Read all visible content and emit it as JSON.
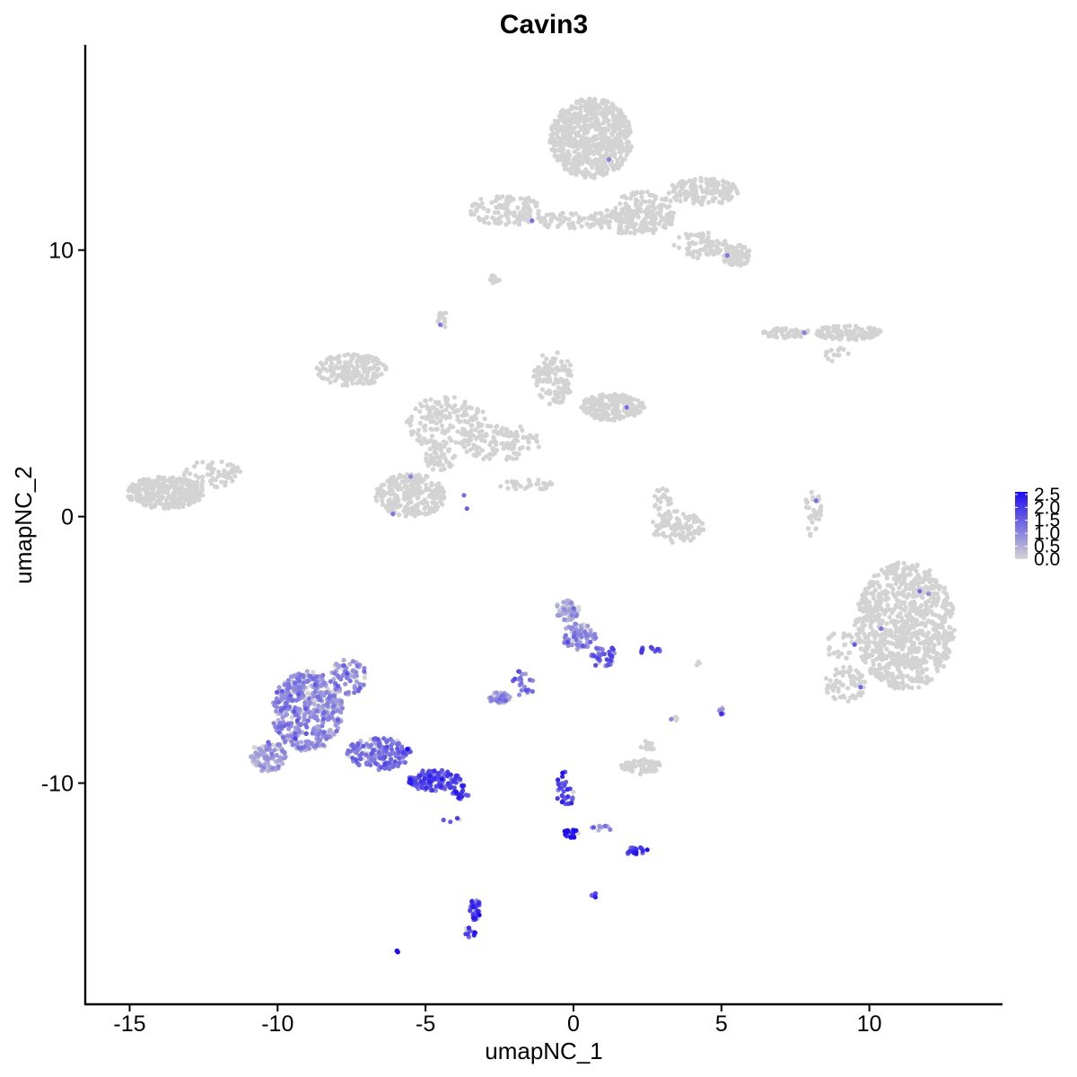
{
  "chart_data": {
    "type": "scatter",
    "title": "Cavin3",
    "xlabel": "umapNC_1",
    "ylabel": "umapNC_2",
    "xlim": [
      -16.5,
      14.5
    ],
    "ylim": [
      -18.3,
      17.7
    ],
    "x_ticks": [
      {
        "value": -15,
        "label": "-15"
      },
      {
        "value": -10,
        "label": "-10"
      },
      {
        "value": -5,
        "label": "-5"
      },
      {
        "value": 0,
        "label": "0"
      },
      {
        "value": 5,
        "label": "5"
      },
      {
        "value": 10,
        "label": "10"
      }
    ],
    "y_ticks": [
      {
        "value": -10,
        "label": "-10"
      },
      {
        "value": 0,
        "label": "0"
      },
      {
        "value": 10,
        "label": "10"
      }
    ],
    "grid": false,
    "legend_position": "right",
    "colorscale": {
      "low": "#d3d3d3",
      "high": "#1d0cf0",
      "min": 0,
      "max": 2.6
    },
    "colorbar_ticks": [
      {
        "value": 0.0,
        "label": "0.0"
      },
      {
        "value": 0.5,
        "label": "0.5"
      },
      {
        "value": 1.0,
        "label": "1.0"
      },
      {
        "value": 1.5,
        "label": "1.5"
      },
      {
        "value": 2.0,
        "label": "2.0"
      },
      {
        "value": 2.5,
        "label": "2.5"
      }
    ],
    "clusters": [
      {
        "x": 11.2,
        "y": -4.1,
        "rx": 1.7,
        "ry": 2.4,
        "n": 900,
        "expr": 0.0
      },
      {
        "x": 9.2,
        "y": -6.3,
        "rx": 0.7,
        "ry": 0.7,
        "n": 70,
        "expr": 0.0
      },
      {
        "x": 9.0,
        "y": -4.8,
        "rx": 0.5,
        "ry": 0.6,
        "n": 25,
        "expr": 0.0
      },
      {
        "x": 0.6,
        "y": 14.2,
        "rx": 1.4,
        "ry": 1.5,
        "n": 650,
        "expr": 0.0
      },
      {
        "x": 2.3,
        "y": 11.4,
        "rx": 1.2,
        "ry": 0.8,
        "n": 160,
        "expr": 0.0
      },
      {
        "x": 4.4,
        "y": 12.2,
        "rx": 1.2,
        "ry": 0.5,
        "n": 160,
        "expr": 0.0
      },
      {
        "x": 5.5,
        "y": 9.8,
        "rx": 0.5,
        "ry": 0.4,
        "n": 80,
        "expr": 0.0
      },
      {
        "x": 4.3,
        "y": 10.2,
        "rx": 0.9,
        "ry": 0.5,
        "n": 80,
        "expr": 0.0
      },
      {
        "x": 1.8,
        "y": 11.1,
        "rx": 1.3,
        "ry": 0.5,
        "n": 90,
        "expr": 0.0
      },
      {
        "x": -0.1,
        "y": 11.1,
        "rx": 1.3,
        "ry": 0.3,
        "n": 60,
        "expr": 0.0
      },
      {
        "x": -2.3,
        "y": 11.5,
        "rx": 1.2,
        "ry": 0.6,
        "n": 120,
        "expr": 0.0
      },
      {
        "x": -2.7,
        "y": 8.9,
        "rx": 0.2,
        "ry": 0.2,
        "n": 15,
        "expr": 0.0
      },
      {
        "x": -4.4,
        "y": 7.4,
        "rx": 0.2,
        "ry": 0.3,
        "n": 14,
        "expr": 0.0
      },
      {
        "x": 9.3,
        "y": 6.9,
        "rx": 1.1,
        "ry": 0.3,
        "n": 110,
        "expr": 0.0
      },
      {
        "x": 7.2,
        "y": 6.9,
        "rx": 0.8,
        "ry": 0.2,
        "n": 50,
        "expr": 0.0
      },
      {
        "x": 8.9,
        "y": 6.1,
        "rx": 0.4,
        "ry": 0.3,
        "n": 15,
        "expr": 0.0
      },
      {
        "x": -13.8,
        "y": 0.9,
        "rx": 1.3,
        "ry": 0.6,
        "n": 330,
        "expr": 0.0
      },
      {
        "x": -12.2,
        "y": 1.6,
        "rx": 1.0,
        "ry": 0.5,
        "n": 60,
        "expr": 0.0
      },
      {
        "x": -7.5,
        "y": 5.5,
        "rx": 1.2,
        "ry": 0.6,
        "n": 170,
        "expr": 0.0
      },
      {
        "x": -4.3,
        "y": 3.5,
        "rx": 1.4,
        "ry": 1.0,
        "n": 170,
        "expr": 0.0
      },
      {
        "x": -2.5,
        "y": 2.8,
        "rx": 1.4,
        "ry": 0.7,
        "n": 120,
        "expr": 0.0
      },
      {
        "x": -0.7,
        "y": 5.2,
        "rx": 0.7,
        "ry": 1.0,
        "n": 120,
        "expr": 0.0
      },
      {
        "x": 1.3,
        "y": 4.1,
        "rx": 1.1,
        "ry": 0.5,
        "n": 200,
        "expr": 0.0
      },
      {
        "x": -5.5,
        "y": 0.8,
        "rx": 1.2,
        "ry": 0.8,
        "n": 250,
        "expr": 0.0
      },
      {
        "x": -4.5,
        "y": 2.2,
        "rx": 0.5,
        "ry": 0.5,
        "n": 60,
        "expr": 0.0
      },
      {
        "x": -1.6,
        "y": 1.2,
        "rx": 1.0,
        "ry": 0.2,
        "n": 35,
        "expr": 0.0
      },
      {
        "x": 3.5,
        "y": -0.4,
        "rx": 0.9,
        "ry": 0.6,
        "n": 100,
        "expr": 0.0
      },
      {
        "x": 3.0,
        "y": 0.5,
        "rx": 0.3,
        "ry": 0.6,
        "n": 30,
        "expr": 0.0
      },
      {
        "x": 8.1,
        "y": 0.1,
        "rx": 0.3,
        "ry": 0.9,
        "n": 40,
        "expr": 0.0
      },
      {
        "x": -0.2,
        "y": -3.5,
        "rx": 0.4,
        "ry": 0.4,
        "n": 60,
        "expr": 0.5
      },
      {
        "x": 0.2,
        "y": -4.5,
        "rx": 0.6,
        "ry": 0.5,
        "n": 80,
        "expr": 0.9
      },
      {
        "x": 1.0,
        "y": -5.2,
        "rx": 0.4,
        "ry": 0.5,
        "n": 40,
        "expr": 1.5
      },
      {
        "x": -1.7,
        "y": -6.2,
        "rx": 0.4,
        "ry": 0.6,
        "n": 20,
        "expr": 1.2
      },
      {
        "x": -2.5,
        "y": -6.8,
        "rx": 0.4,
        "ry": 0.2,
        "n": 40,
        "expr": 0.7
      },
      {
        "x": 2.6,
        "y": -5.0,
        "rx": 0.4,
        "ry": 0.1,
        "n": 12,
        "expr": 1.7
      },
      {
        "x": 4.2,
        "y": -5.5,
        "rx": 0.1,
        "ry": 0.1,
        "n": 3,
        "expr": 0.0
      },
      {
        "x": 5.0,
        "y": -7.3,
        "rx": 0.1,
        "ry": 0.2,
        "n": 10,
        "expr": 0.3
      },
      {
        "x": 3.4,
        "y": -7.6,
        "rx": 0.1,
        "ry": 0.1,
        "n": 5,
        "expr": 0.0
      },
      {
        "x": 2.3,
        "y": -9.4,
        "rx": 0.7,
        "ry": 0.3,
        "n": 70,
        "expr": 0.0
      },
      {
        "x": 2.5,
        "y": -8.6,
        "rx": 0.3,
        "ry": 0.2,
        "n": 12,
        "expr": 0.0
      },
      {
        "x": -9.0,
        "y": -7.3,
        "rx": 1.2,
        "ry": 1.5,
        "n": 450,
        "expr": 0.8
      },
      {
        "x": -10.3,
        "y": -9.0,
        "rx": 0.6,
        "ry": 0.6,
        "n": 100,
        "expr": 0.6
      },
      {
        "x": -7.6,
        "y": -6.0,
        "rx": 0.6,
        "ry": 0.7,
        "n": 70,
        "expr": 0.8
      },
      {
        "x": -6.6,
        "y": -8.9,
        "rx": 1.1,
        "ry": 0.6,
        "n": 170,
        "expr": 1.2
      },
      {
        "x": -4.7,
        "y": -9.9,
        "rx": 0.9,
        "ry": 0.4,
        "n": 140,
        "expr": 1.7
      },
      {
        "x": -3.8,
        "y": -10.3,
        "rx": 0.3,
        "ry": 0.3,
        "n": 20,
        "expr": 1.8
      },
      {
        "x": -4.1,
        "y": -11.4,
        "rx": 0.3,
        "ry": 0.1,
        "n": 4,
        "expr": 1.7
      },
      {
        "x": -3.3,
        "y": -14.8,
        "rx": 0.2,
        "ry": 0.5,
        "n": 35,
        "expr": 1.8
      },
      {
        "x": -3.5,
        "y": -15.6,
        "rx": 0.2,
        "ry": 0.2,
        "n": 12,
        "expr": 2.0
      },
      {
        "x": -6.0,
        "y": -16.3,
        "rx": 0.1,
        "ry": 0.1,
        "n": 3,
        "expr": 2.0
      },
      {
        "x": 0.7,
        "y": -14.2,
        "rx": 0.1,
        "ry": 0.1,
        "n": 5,
        "expr": 2.0
      },
      {
        "x": -0.3,
        "y": -10.3,
        "rx": 0.3,
        "ry": 0.8,
        "n": 30,
        "expr": 1.8
      },
      {
        "x": -0.1,
        "y": -11.9,
        "rx": 0.3,
        "ry": 0.2,
        "n": 20,
        "expr": 2.5
      },
      {
        "x": 0.9,
        "y": -11.7,
        "rx": 0.4,
        "ry": 0.15,
        "n": 10,
        "expr": 0.8
      },
      {
        "x": 2.1,
        "y": -12.5,
        "rx": 0.4,
        "ry": 0.2,
        "n": 25,
        "expr": 1.8
      }
    ],
    "highlight_points": [
      {
        "x": 1.2,
        "y": 13.4,
        "v": 1.1
      },
      {
        "x": -1.4,
        "y": 11.1,
        "v": 1.3
      },
      {
        "x": 5.2,
        "y": 9.8,
        "v": 1.2
      },
      {
        "x": 7.8,
        "y": 6.9,
        "v": 1.1
      },
      {
        "x": -4.5,
        "y": 7.2,
        "v": 1.2
      },
      {
        "x": 1.8,
        "y": 4.1,
        "v": 1.3
      },
      {
        "x": -5.5,
        "y": 1.5,
        "v": 1.0
      },
      {
        "x": -3.7,
        "y": 0.8,
        "v": 1.3
      },
      {
        "x": -3.6,
        "y": 0.3,
        "v": 1.5
      },
      {
        "x": -6.1,
        "y": 0.1,
        "v": 1.2
      },
      {
        "x": 8.2,
        "y": 0.6,
        "v": 1.3
      },
      {
        "x": 11.7,
        "y": -2.8,
        "v": 1.4
      },
      {
        "x": 12.0,
        "y": -2.9,
        "v": 0.9
      },
      {
        "x": 10.4,
        "y": -4.2,
        "v": 1.2
      },
      {
        "x": 9.5,
        "y": -4.8,
        "v": 1.6
      },
      {
        "x": 9.7,
        "y": -6.4,
        "v": 1.4
      },
      {
        "x": 5.0,
        "y": -7.4,
        "v": 2.2
      },
      {
        "x": 3.3,
        "y": -7.6,
        "v": 1.0
      },
      {
        "x": 2.3,
        "y": -5.1,
        "v": 2.0
      }
    ]
  }
}
